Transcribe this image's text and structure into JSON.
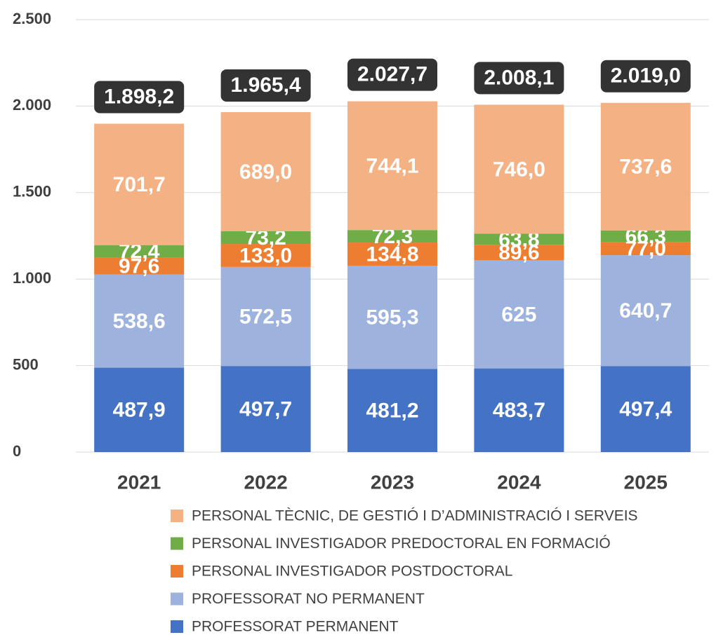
{
  "chart_data": {
    "type": "stacked_bar",
    "categories": [
      "2021",
      "2022",
      "2023",
      "2024",
      "2025"
    ],
    "series": [
      {
        "name": "PROFESSORAT PERMANENT",
        "color": "#4472c4",
        "values": [
          487.9,
          497.7,
          481.2,
          483.7,
          497.4
        ],
        "value_labels": [
          "487,9",
          "497,7",
          "481,2",
          "483,7",
          "497,4"
        ]
      },
      {
        "name": "PROFESSORAT NO PERMANENT",
        "color": "#9db3de",
        "values": [
          538.6,
          572.5,
          595.3,
          625,
          640.7
        ],
        "value_labels": [
          "538,6",
          "572,5",
          "595,3",
          "625",
          "640,7"
        ]
      },
      {
        "name": "PERSONAL INVESTIGADOR POSTDOCTORAL",
        "color": "#ed7d31",
        "values": [
          97.6,
          133.0,
          134.8,
          89.6,
          77.0
        ],
        "value_labels": [
          "97,6",
          "133,0",
          "134,8",
          "89,6",
          "77,0"
        ]
      },
      {
        "name": "PERSONAL INVESTIGADOR PREDOCTORAL EN FORMACIÓ",
        "color": "#70ad47",
        "values": [
          72.4,
          73.2,
          72.3,
          63.8,
          66.3
        ],
        "value_labels": [
          "72,4",
          "73,2",
          "72,3",
          "63,8",
          "66,3"
        ]
      },
      {
        "name": "PERSONAL TÈCNIC, DE GESTIÓ I D’ADMINISTRACIÓ I SERVEIS",
        "color": "#f4b183",
        "values": [
          701.7,
          689.0,
          744.1,
          746.0,
          737.6
        ],
        "value_labels": [
          "701,7",
          "689,0",
          "744,1",
          "746,0",
          "737,6"
        ]
      }
    ],
    "totals": {
      "values": [
        1898.2,
        1965.4,
        2027.7,
        2008.1,
        2019.0
      ],
      "value_labels": [
        "1.898,2",
        "1.965,4",
        "2.027,7",
        "2.008,1",
        "2.019,0"
      ]
    },
    "ylim": [
      0,
      2500
    ],
    "yticks": [
      0,
      500,
      {
        "value": 1000,
        "label": "1.000"
      },
      {
        "value": 1500,
        "label": "1.500"
      },
      {
        "value": 2000,
        "label": "2.000"
      },
      {
        "value": 2500,
        "label": "2.500"
      }
    ],
    "grid": true
  }
}
